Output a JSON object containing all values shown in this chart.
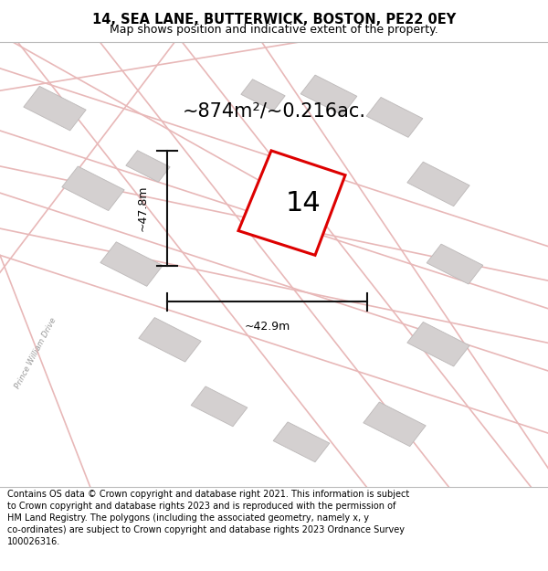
{
  "title": "14, SEA LANE, BUTTERWICK, BOSTON, PE22 0EY",
  "subtitle": "Map shows position and indicative extent of the property.",
  "footer": "Contains OS data © Crown copyright and database right 2021. This information is subject to Crown copyright and database rights 2023 and is reproduced with the permission of HM Land Registry. The polygons (including the associated geometry, namely x, y co-ordinates) are subject to Crown copyright and database rights 2023 Ordnance Survey 100026316.",
  "area_label": "~874m²/~0.216ac.",
  "width_label": "~42.9m",
  "height_label": "~47.8m",
  "plot_number": "14",
  "map_bg": "#f7f4f4",
  "road_line_color": "#e8b8b8",
  "building_color": "#d4d0d0",
  "building_edge": "#bcb8b8",
  "plot_color": "#dd0000",
  "dim_color": "#111111",
  "road_label": "Prince William Drive",
  "title_fontsize": 10.5,
  "subtitle_fontsize": 9,
  "footer_fontsize": 7.0,
  "area_fontsize": 15,
  "plot_num_fontsize": 22,
  "dim_fontsize": 9
}
